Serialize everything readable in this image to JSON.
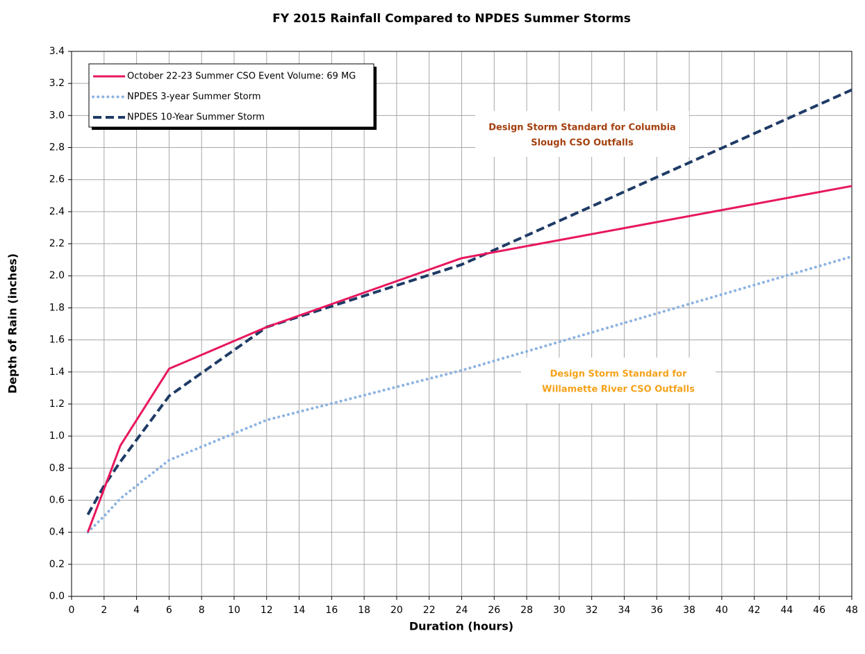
{
  "chart_data": {
    "type": "line",
    "title": "FY 2015 Rainfall Compared to NPDES Summer Storms",
    "x_label": "Duration (hours)",
    "y_label": "Depth of Rain (inches)",
    "x": [
      1,
      2,
      3,
      6,
      12,
      24,
      48
    ],
    "series": [
      {
        "name": "October 22-23 Summer CSO Event Volume: 69 MG",
        "color": "#e8175d",
        "style": "solid",
        "values": [
          0.4,
          0.67,
          0.94,
          1.42,
          1.68,
          2.11,
          2.56
        ]
      },
      {
        "name": "NPDES 3-year Summer Storm",
        "color": "#8db3e2",
        "style": "dotted",
        "values": [
          0.4,
          0.5,
          0.61,
          0.85,
          1.1,
          1.41,
          2.12
        ]
      },
      {
        "name": "NPDES 10-Year Summer Storm",
        "color": "#1f3b66",
        "style": "dashed",
        "values": [
          0.51,
          0.69,
          0.84,
          1.25,
          1.68,
          2.07,
          3.16
        ]
      }
    ],
    "annotations": [
      {
        "lines": [
          "Design Storm Standard for Columbia",
          "Slough CSO Outfalls"
        ],
        "color": "#a3400f"
      },
      {
        "lines": [
          "Design Storm Standard for",
          "Willamette River CSO Outfalls"
        ],
        "color": "#f5a21b"
      }
    ],
    "xlim": [
      0,
      48
    ],
    "xticks": [
      0,
      2,
      4,
      6,
      8,
      10,
      12,
      14,
      16,
      18,
      20,
      22,
      24,
      26,
      28,
      30,
      32,
      34,
      36,
      38,
      40,
      42,
      44,
      46,
      48
    ],
    "ylim": [
      0,
      3.4
    ],
    "yticks": [
      {
        "value": 0,
        "label": "0.0"
      },
      0.2,
      0.4,
      0.6,
      0.8,
      {
        "value": 1,
        "label": "1.0"
      },
      1.2,
      1.4,
      1.6,
      1.8,
      {
        "value": 2,
        "label": "2.0"
      },
      2.2,
      2.4,
      2.6,
      2.8,
      {
        "value": 3,
        "label": "3.0"
      },
      3.2,
      3.4
    ],
    "grid": true,
    "legend": "top-left"
  }
}
